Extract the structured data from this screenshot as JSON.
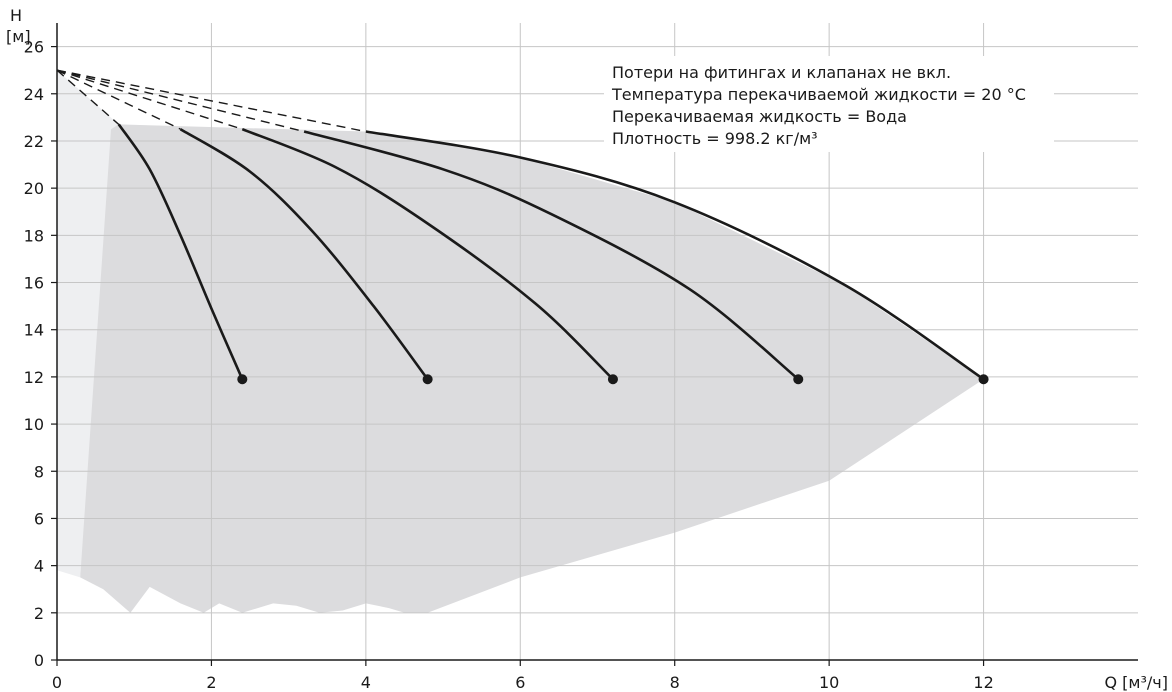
{
  "chart_data": {
    "type": "line",
    "title": "",
    "xlabel": "Q [м³/ч]",
    "ylabel_top": "H",
    "ylabel_unit": "[м]",
    "xlim": [
      0,
      14
    ],
    "ylim": [
      0,
      27
    ],
    "x_ticks": [
      0,
      2,
      4,
      6,
      8,
      10,
      12
    ],
    "y_ticks": [
      0,
      2,
      4,
      6,
      8,
      10,
      12,
      14,
      16,
      18,
      20,
      22,
      24,
      26
    ],
    "grid": true,
    "notes": [
      "Потери на фитингах и клапанах не вкл.",
      "Температура перекачиваемой жидкости = 20 °C",
      "Перекачиваемая жидкость = Вода",
      "Плотность = 998.2 кг/м³"
    ],
    "shutoff_point": [
      0,
      25
    ],
    "series": [
      {
        "x": [
          0.8,
          1.2,
          1.6,
          2.0,
          2.4
        ],
        "y": [
          22.7,
          20.8,
          18.0,
          14.9,
          11.9
        ]
      },
      {
        "x": [
          1.6,
          2.5,
          3.3,
          4.1,
          4.8
        ],
        "y": [
          22.5,
          20.7,
          18.2,
          15.0,
          11.9
        ]
      },
      {
        "x": [
          2.4,
          3.6,
          4.8,
          6.2,
          7.2
        ],
        "y": [
          22.5,
          20.9,
          18.5,
          15.1,
          11.9
        ]
      },
      {
        "x": [
          3.2,
          5.0,
          6.4,
          8.2,
          9.6
        ],
        "y": [
          22.4,
          20.8,
          18.9,
          15.7,
          11.9
        ]
      },
      {
        "x": [
          4.0,
          6.0,
          8.0,
          10.2,
          12.0
        ],
        "y": [
          22.4,
          21.3,
          19.4,
          15.9,
          11.9
        ]
      }
    ],
    "operating_area": {
      "upper": [
        [
          0.8,
          22.7
        ],
        [
          4.0,
          22.4
        ],
        [
          6.0,
          21.3
        ],
        [
          8.0,
          19.4
        ],
        [
          10.2,
          15.9
        ],
        [
          12.0,
          11.9
        ]
      ],
      "lower": [
        [
          12.0,
          11.9
        ],
        [
          10.0,
          7.6
        ],
        [
          8.0,
          5.4
        ],
        [
          6.0,
          3.5
        ],
        [
          4.8,
          2.0
        ],
        [
          4.5,
          2.0
        ],
        [
          4.3,
          2.2
        ],
        [
          4.0,
          2.4
        ],
        [
          3.7,
          2.1
        ],
        [
          3.4,
          2.0
        ],
        [
          3.1,
          2.3
        ],
        [
          2.8,
          2.4
        ],
        [
          2.4,
          2.0
        ],
        [
          2.1,
          2.4
        ],
        [
          1.9,
          2.0
        ],
        [
          1.6,
          2.4
        ],
        [
          1.2,
          3.1
        ],
        [
          0.95,
          2.0
        ],
        [
          0.6,
          3.0
        ],
        [
          0.3,
          3.5
        ]
      ],
      "left_edge": [
        [
          0.3,
          3.5
        ],
        [
          0.7,
          22.5
        ]
      ]
    },
    "min_speed_zone": [
      [
        0,
        25
      ],
      [
        0.8,
        22.7
      ],
      [
        0.3,
        3.5
      ],
      [
        0,
        3.8
      ]
    ]
  }
}
